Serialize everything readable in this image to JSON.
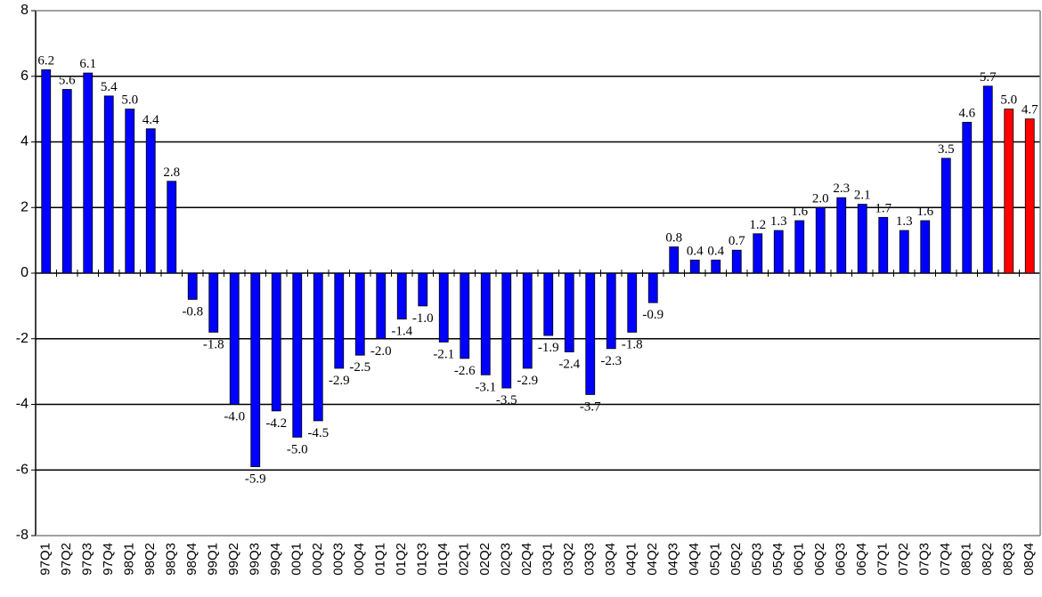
{
  "chart_data": {
    "type": "bar",
    "categories": [
      "97Q1",
      "97Q2",
      "97Q3",
      "97Q4",
      "98Q1",
      "98Q2",
      "98Q3",
      "98Q4",
      "99Q1",
      "99Q2",
      "99Q3",
      "99Q4",
      "00Q1",
      "00Q2",
      "00Q3",
      "00Q4",
      "01Q1",
      "01Q2",
      "01Q3",
      "01Q4",
      "02Q1",
      "02Q2",
      "02Q3",
      "02Q4",
      "03Q1",
      "03Q2",
      "03Q3",
      "03Q4",
      "04Q1",
      "04Q2",
      "04Q3",
      "04Q4",
      "05Q1",
      "05Q2",
      "05Q3",
      "05Q4",
      "06Q1",
      "06Q2",
      "06Q3",
      "06Q4",
      "07Q1",
      "07Q2",
      "07Q3",
      "07Q4",
      "08Q1",
      "08Q2",
      "08Q3",
      "08Q4"
    ],
    "values": [
      6.2,
      5.6,
      6.1,
      5.4,
      5.0,
      4.4,
      2.8,
      -0.8,
      -1.8,
      -4.0,
      -5.9,
      -4.2,
      -5.0,
      -4.5,
      -2.9,
      -2.5,
      -2.0,
      -1.4,
      -1.0,
      -2.1,
      -2.6,
      -3.1,
      -3.5,
      -2.9,
      -1.9,
      -2.4,
      -3.7,
      -2.3,
      -1.8,
      -0.9,
      0.8,
      0.4,
      0.4,
      0.7,
      1.2,
      1.3,
      1.6,
      2.0,
      2.3,
      2.1,
      1.7,
      1.3,
      1.6,
      3.5,
      4.6,
      5.7,
      5.0,
      4.7
    ],
    "value_labels": [
      "6.2",
      "5.6",
      "6.1",
      "5.4",
      "5.0",
      "4.4",
      "2.8",
      "-0.8",
      "-1.8",
      "-4.0",
      "-5.9",
      "-4.2",
      "-5.0",
      "-4.5",
      "-2.9",
      "-2.5",
      "-2.0",
      "-1.4",
      "-1.0",
      "-2.1",
      "-2.6",
      "-3.1",
      "-3.5",
      "-2.9",
      "-1.9",
      "-2.4",
      "-3.7",
      "-2.3",
      "-1.8",
      "-0.9",
      "0.8",
      "0.4",
      "0.4",
      "0.7",
      "1.2",
      "1.3",
      "1.6",
      "2.0",
      "2.3",
      "2.1",
      "1.7",
      "1.3",
      "1.6",
      "3.5",
      "4.6",
      "5.7",
      "5.0",
      "4.7"
    ],
    "colors": [
      "#0000ff",
      "#0000ff",
      "#0000ff",
      "#0000ff",
      "#0000ff",
      "#0000ff",
      "#0000ff",
      "#0000ff",
      "#0000ff",
      "#0000ff",
      "#0000ff",
      "#0000ff",
      "#0000ff",
      "#0000ff",
      "#0000ff",
      "#0000ff",
      "#0000ff",
      "#0000ff",
      "#0000ff",
      "#0000ff",
      "#0000ff",
      "#0000ff",
      "#0000ff",
      "#0000ff",
      "#0000ff",
      "#0000ff",
      "#0000ff",
      "#0000ff",
      "#0000ff",
      "#0000ff",
      "#0000ff",
      "#0000ff",
      "#0000ff",
      "#0000ff",
      "#0000ff",
      "#0000ff",
      "#0000ff",
      "#0000ff",
      "#0000ff",
      "#0000ff",
      "#0000ff",
      "#0000ff",
      "#0000ff",
      "#0000ff",
      "#0000ff",
      "#0000ff",
      "#ff0000",
      "#ff0000"
    ],
    "ylim": [
      -8,
      8
    ],
    "yticks": [
      -8,
      -6,
      -4,
      -2,
      0,
      2,
      4,
      6,
      8
    ],
    "grid": true
  }
}
